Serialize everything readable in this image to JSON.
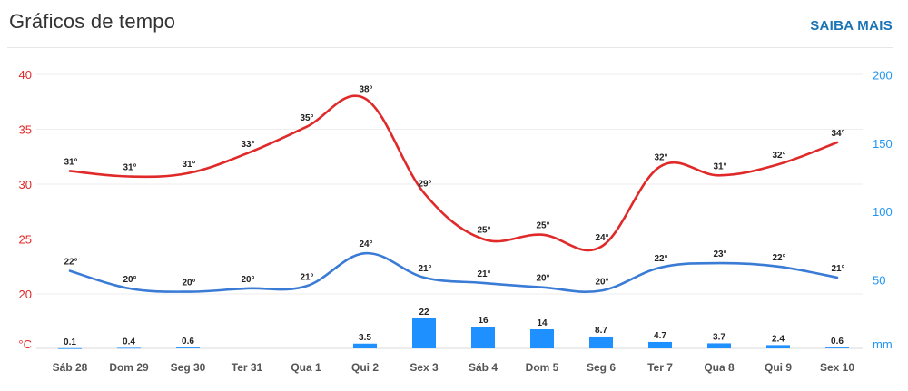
{
  "header": {
    "title": "Gráficos de tempo",
    "more_label": "SAIBA MAIS"
  },
  "colors": {
    "max_line": "#e02a2a",
    "min_line": "#3a7bd5",
    "bars": "#1e90ff",
    "right_axis": "#2196f3",
    "grid": "#eeeeee"
  },
  "chart_data": {
    "type": "line",
    "categories": [
      "Sáb 28",
      "Dom 29",
      "Seg 30",
      "Ter 31",
      "Qua 1",
      "Qui 2",
      "Sex 3",
      "Sáb 4",
      "Dom 5",
      "Seg 6",
      "Ter 7",
      "Qua 8",
      "Qui 9",
      "Sex 10"
    ],
    "series": [
      {
        "name": "max_temp",
        "axis": "left",
        "values": [
          31,
          31,
          31,
          33,
          35,
          38,
          29,
          25,
          25,
          24,
          32,
          31,
          32,
          34
        ],
        "curve_values": [
          31.2,
          30.7,
          31.0,
          32.8,
          35.2,
          37.8,
          29.2,
          25.0,
          25.4,
          24.3,
          31.6,
          30.8,
          31.8,
          33.8
        ],
        "labels": [
          "31°",
          "31°",
          "31°",
          "33°",
          "35°",
          "38°",
          "29°",
          "25°",
          "25°",
          "24°",
          "32°",
          "31°",
          "32°",
          "34°"
        ]
      },
      {
        "name": "min_temp",
        "axis": "left",
        "values": [
          22,
          20,
          20,
          20,
          21,
          24,
          21,
          21,
          20,
          20,
          22,
          23,
          22,
          21
        ],
        "curve_values": [
          22.1,
          20.5,
          20.2,
          20.5,
          20.7,
          23.7,
          21.5,
          21.0,
          20.6,
          20.3,
          22.4,
          22.8,
          22.5,
          21.5
        ],
        "labels": [
          "22°",
          "20°",
          "20°",
          "20°",
          "21°",
          "24°",
          "21°",
          "21°",
          "20°",
          "20°",
          "22°",
          "23°",
          "22°",
          "21°"
        ]
      },
      {
        "name": "precipitation",
        "type": "bar",
        "axis": "right",
        "values": [
          0.1,
          0.4,
          0.6,
          0,
          0,
          3.5,
          22,
          16,
          14,
          8.7,
          4.7,
          3.7,
          2.4,
          0.6
        ],
        "labels": [
          "0.1",
          "0.4",
          "0.6",
          "",
          "",
          "3.5",
          "22",
          "16",
          "14",
          "8.7",
          "4.7",
          "3.7",
          "2.4",
          "0.6"
        ]
      }
    ],
    "y_left": {
      "ticks": [
        "40",
        "35",
        "30",
        "25",
        "20"
      ],
      "tick_values": [
        40,
        35,
        30,
        25,
        20
      ],
      "unit": "°C",
      "ylim": [
        15,
        40
      ]
    },
    "y_right": {
      "ticks": [
        "200",
        "150",
        "100",
        "50"
      ],
      "tick_values": [
        200,
        150,
        100,
        50
      ],
      "unit": "mm",
      "ylim": [
        0,
        200
      ]
    },
    "grid": true
  }
}
